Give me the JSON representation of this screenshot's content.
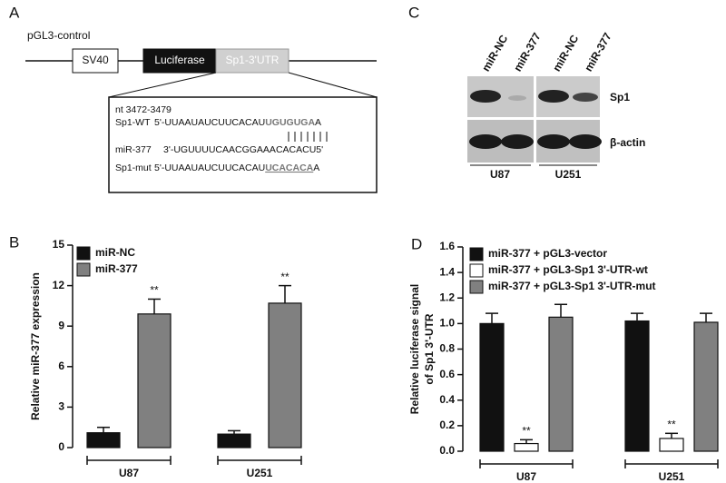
{
  "panel_a": {
    "panel_label": "A",
    "vector": "pGL3-control",
    "elements": [
      "SV40",
      "Luciferase",
      "Sp1-3'UTR"
    ],
    "site": "nt 3472-3479",
    "rows": [
      {
        "name": "Sp1-WT",
        "seq": "5'-UUAAUAUCUUCACAU",
        "highlight": "UGUGUGA",
        "tail": "A"
      },
      {
        "name": "miR-377",
        "seq": "3'-UGUUUUCAACGGAAACACACU5'"
      },
      {
        "name": "Sp1-mut",
        "seq": "5'-UUAAUAUCUUCACAU",
        "highlight": "UCACACA",
        "tail": "A"
      }
    ]
  },
  "panel_c": {
    "panel_label": "C",
    "lanes": [
      "miR-NC",
      "miR-377",
      "miR-NC",
      "miR-377"
    ],
    "proteins": [
      "Sp1",
      "β-actin"
    ],
    "cell_lines": [
      "U87",
      "U251"
    ]
  },
  "chart_data": [
    {
      "type": "bar",
      "panel_label": "B",
      "y_label": "Relative miR-377 expression",
      "categories": [
        "U87",
        "U251"
      ],
      "series": [
        {
          "name": "miR-NC",
          "color": "#111111",
          "values": [
            1.1,
            1.0
          ],
          "errors": [
            0.4,
            0.25
          ]
        },
        {
          "name": "miR-377",
          "color": "#808080",
          "values": [
            9.9,
            10.7
          ],
          "errors": [
            1.1,
            1.3
          ],
          "labels": [
            "**",
            "**"
          ]
        }
      ],
      "ylim": [
        0,
        15
      ],
      "yticks": [
        0,
        3,
        6,
        9,
        12,
        15
      ],
      "legend": "upper left"
    },
    {
      "type": "bar",
      "panel_label": "D",
      "y_label": [
        "Relative luciferase signal",
        "of Sp1 3'-UTR"
      ],
      "categories": [
        "U87",
        "U251"
      ],
      "series": [
        {
          "name": "miR-377 + pGL3-vector",
          "color": "#111111",
          "values": [
            1.0,
            1.02
          ],
          "errors": [
            0.08,
            0.06
          ]
        },
        {
          "name": "miR-377 + pGL3-Sp1 3'-UTR-wt",
          "color": "#ffffff",
          "values": [
            0.06,
            0.1
          ],
          "errors": [
            0.03,
            0.04
          ],
          "labels": [
            "**",
            "**"
          ]
        },
        {
          "name": "miR-377 + pGL3-Sp1 3'-UTR-mut",
          "color": "#808080",
          "values": [
            1.05,
            1.01
          ],
          "errors": [
            0.1,
            0.07
          ]
        }
      ],
      "ylim": [
        0,
        1.6
      ],
      "yticks": [
        {
          "value": 0,
          "label": "0.0"
        },
        0.2,
        0.4,
        0.6,
        0.8,
        {
          "value": 1,
          "label": "1.0"
        },
        1.2,
        1.4,
        1.6
      ],
      "legend": "upper left"
    }
  ]
}
